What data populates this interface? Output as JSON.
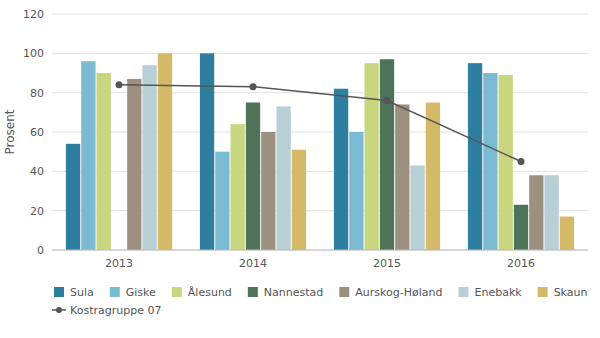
{
  "chart_data": {
    "type": "bar",
    "ylabel": "Prosent",
    "categories": [
      "2013",
      "2014",
      "2015",
      "2016"
    ],
    "series": [
      {
        "name": "Sula",
        "color": "#2e7ea0",
        "values": [
          54,
          100,
          82,
          95
        ]
      },
      {
        "name": "Giske",
        "color": "#7abbd3",
        "values": [
          96,
          50,
          60,
          90
        ]
      },
      {
        "name": "Ålesund",
        "color": "#c9d680",
        "values": [
          90,
          64,
          95,
          89
        ]
      },
      {
        "name": "Nannestad",
        "color": "#4d7458",
        "values": [
          0,
          75,
          97,
          23
        ]
      },
      {
        "name": "Aurskog-Høland",
        "color": "#9e9080",
        "values": [
          87,
          60,
          74,
          38
        ]
      },
      {
        "name": "Enebakk",
        "color": "#b8cfd6",
        "values": [
          94,
          73,
          43,
          38
        ]
      },
      {
        "name": "Skaun",
        "color": "#d4ba68",
        "values": [
          100,
          51,
          75,
          17
        ]
      },
      {
        "name": "Kostragruppe 07",
        "color": "#555555",
        "type": "line",
        "marker": "circle",
        "values": [
          84,
          83,
          76,
          45
        ]
      }
    ],
    "ylim": [
      0,
      120
    ],
    "yticks": [
      0,
      20,
      40,
      60,
      80,
      100,
      120
    ],
    "grid": true,
    "legend": "bottom"
  }
}
